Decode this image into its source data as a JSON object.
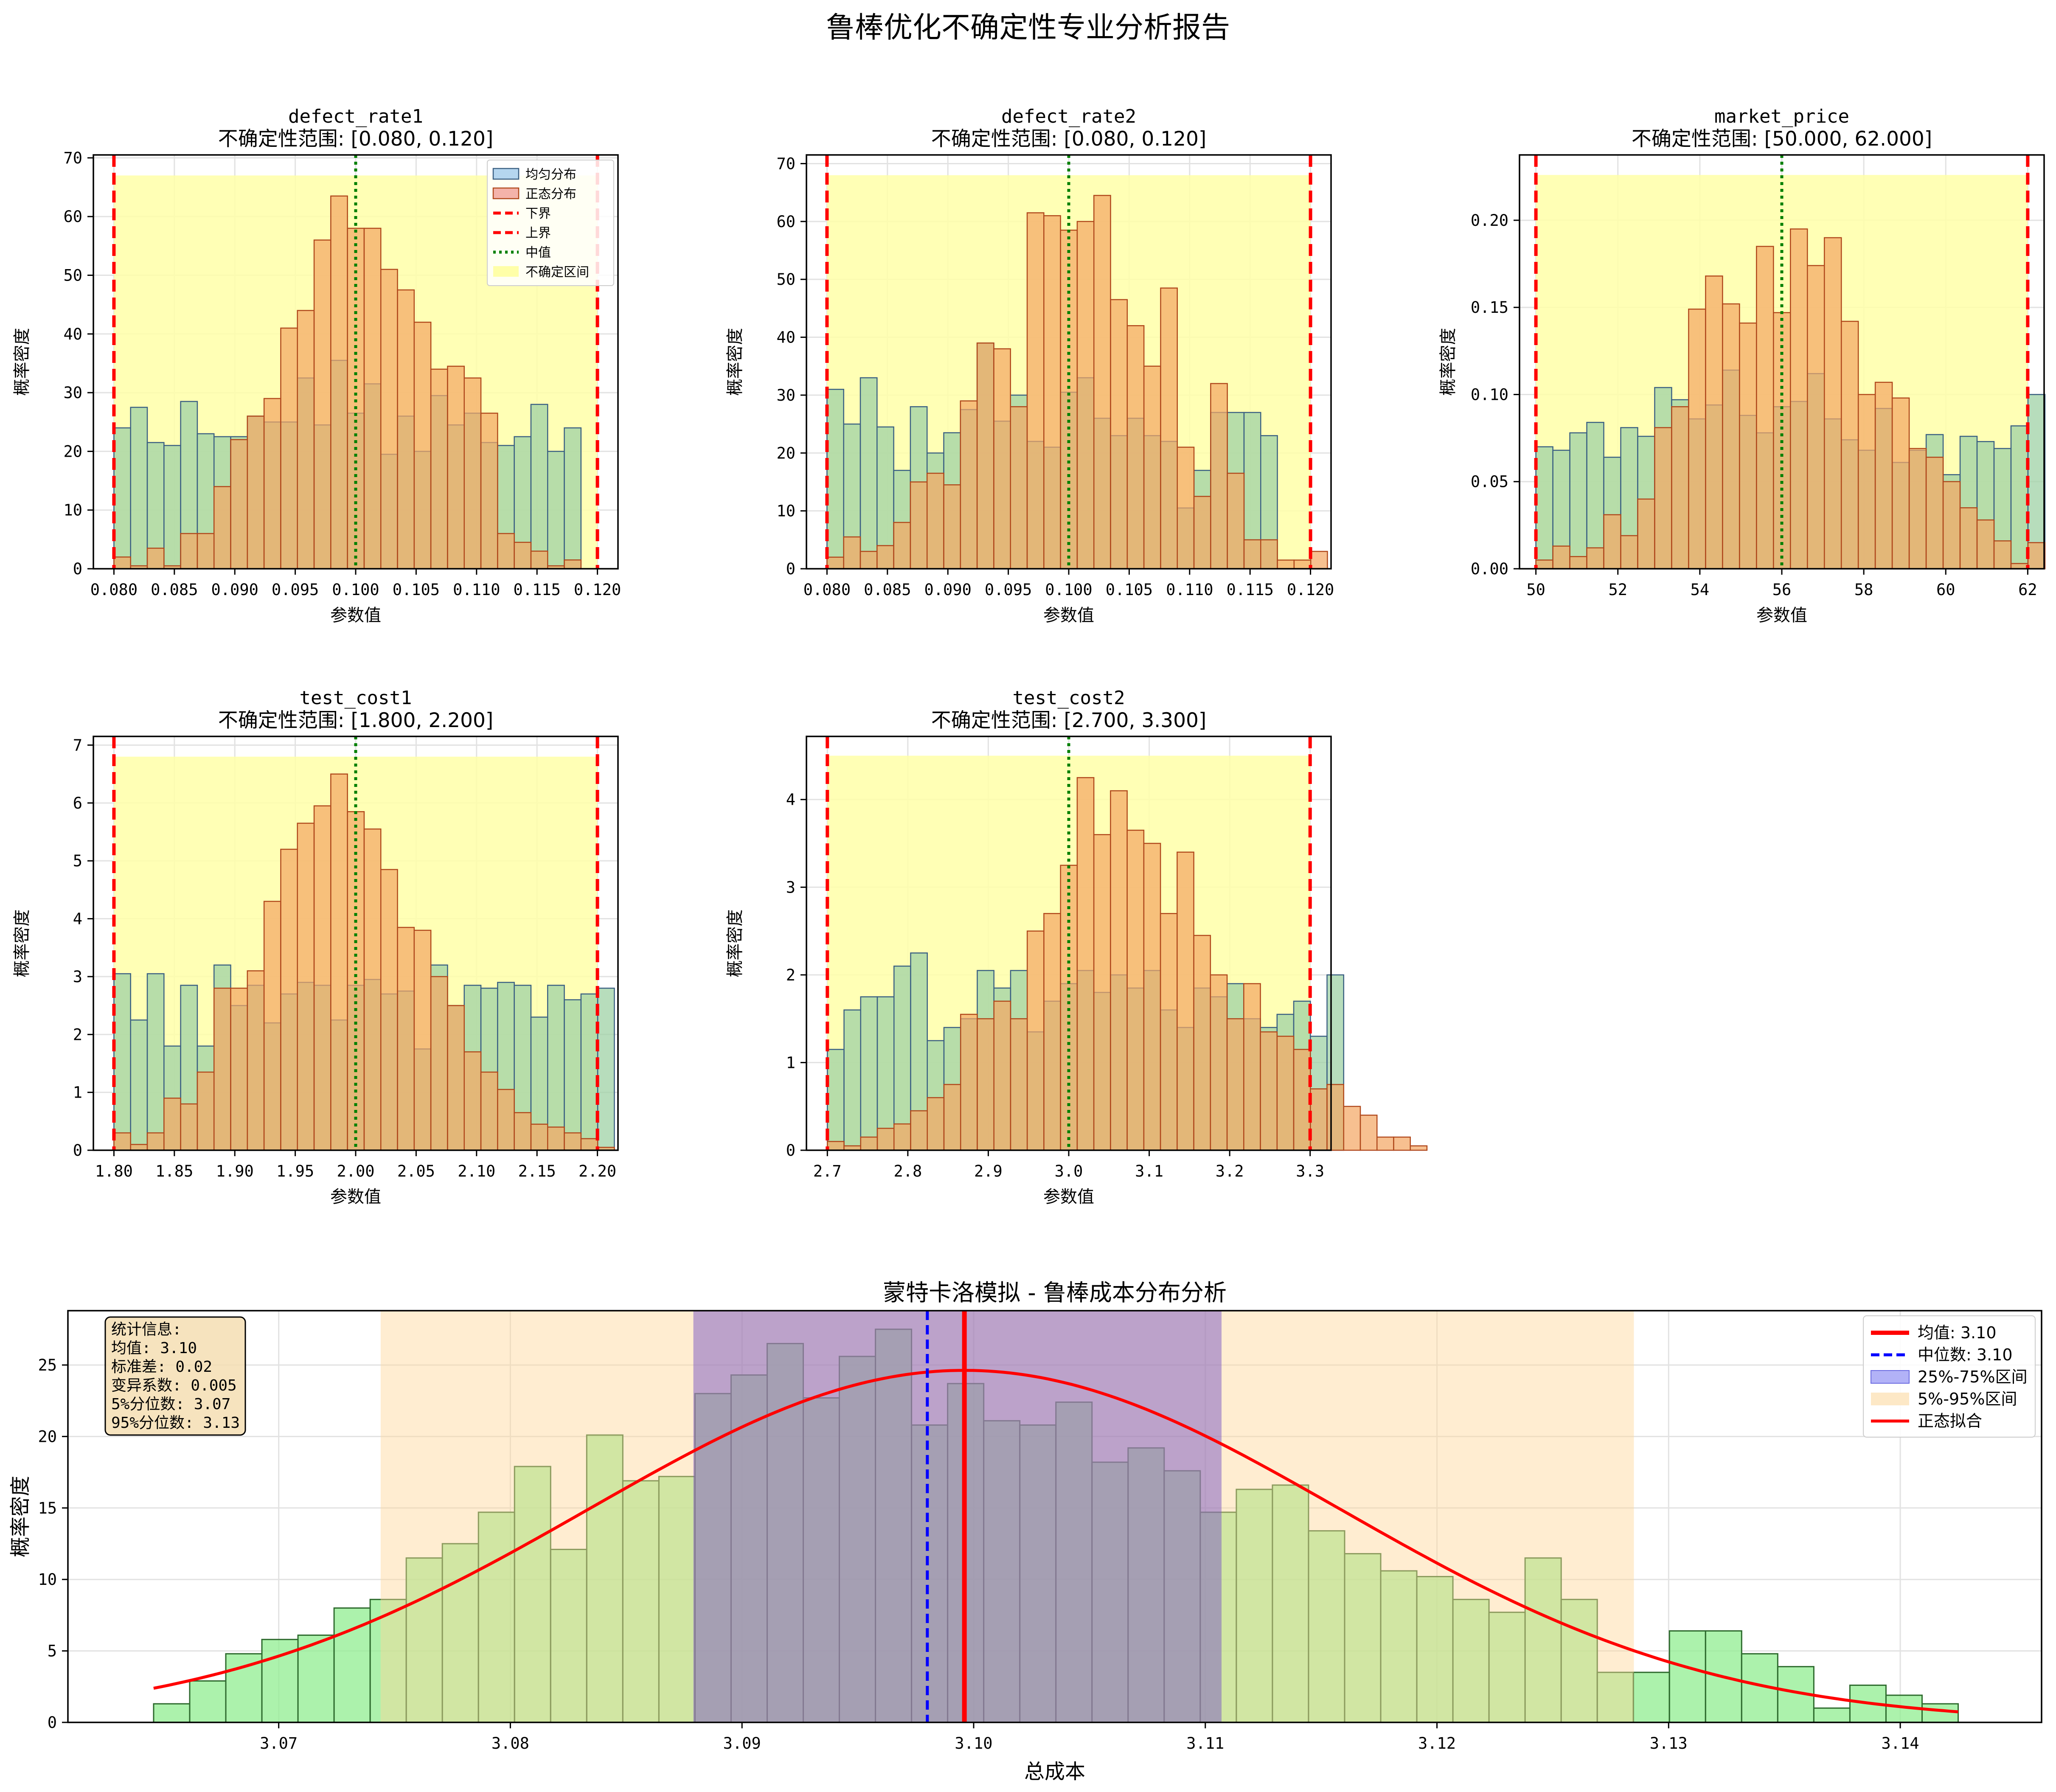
{
  "figure_title": "鲁棒优化不确定性专业分析报告",
  "colors": {
    "uniform_fill": "#9fd2a6",
    "uniform_edge": "#3a5f82",
    "normal_fill": "#f4a765",
    "normal_edge": "#b0481c",
    "bound_line": "#ff0000",
    "center_line": "#008000",
    "band": "#ffffa8",
    "grid": "#e2e2e2",
    "mc_bar": "#90ee90",
    "mc_bar_edge": "#2e6b2e",
    "iqr_band": "#7a58c4",
    "p90_band": "#ffd898",
    "mean_line": "#ff0000",
    "median_line": "#0000ff",
    "fit_line": "#ff0000",
    "stats_box": "#f5deb3"
  },
  "legend_small": [
    {
      "label": "均匀分布",
      "type": "uniform"
    },
    {
      "label": "正态分布",
      "type": "normal"
    },
    {
      "label": "下界",
      "type": "bound"
    },
    {
      "label": "上界",
      "type": "bound"
    },
    {
      "label": "中值",
      "type": "center"
    },
    {
      "label": "不确定区间",
      "type": "band"
    }
  ],
  "chart_data": [
    {
      "type": "bar",
      "title": "defect_rate1",
      "subtitle": "不确定性范围: [0.080, 0.120]",
      "xlabel": "参数值",
      "ylabel": "概率密度",
      "xlim": [
        0.0783,
        0.1217
      ],
      "ylim": [
        0,
        70.5
      ],
      "bounds": [
        0.08,
        0.12
      ],
      "center": 0.1,
      "band_top": 67,
      "xticks": [
        0.08,
        0.085,
        0.09,
        0.095,
        0.1,
        0.105,
        0.11,
        0.115,
        0.12
      ],
      "xtick_labels": [
        "0.080",
        "0.085",
        "0.090",
        "0.095",
        "0.100",
        "0.105",
        "0.110",
        "0.115",
        "0.120"
      ],
      "yticks": [
        0,
        10,
        20,
        30,
        40,
        50,
        60,
        70
      ],
      "ytick_labels": [
        "0",
        "10",
        "20",
        "30",
        "40",
        "50",
        "60",
        "70"
      ],
      "bin_start": 0.08,
      "bin_width": 0.00138,
      "series": [
        {
          "name": "均匀分布",
          "values": [
            24,
            27.5,
            21.5,
            21,
            28.5,
            23,
            22.5,
            22.5,
            26,
            25,
            25,
            32.5,
            24.5,
            35.5,
            26.5,
            31.5,
            19.5,
            26,
            20,
            29.5,
            24.5,
            26.5,
            21.5,
            21,
            22.5,
            28,
            20,
            24
          ]
        },
        {
          "name": "正态分布",
          "values": [
            2,
            0.5,
            3.5,
            0.5,
            6,
            6,
            14,
            22,
            26,
            29,
            41,
            44,
            56,
            63.5,
            58,
            58,
            51,
            47.5,
            42,
            34,
            34.5,
            32.5,
            26.5,
            6,
            4.5,
            3,
            0.5,
            1.5
          ]
        }
      ],
      "legend": "upper right"
    },
    {
      "type": "bar",
      "title": "defect_rate2",
      "subtitle": "不确定性范围: [0.080, 0.120]",
      "xlabel": "参数值",
      "ylabel": "概率密度",
      "xlim": [
        0.0783,
        0.1217
      ],
      "ylim": [
        0,
        71.5
      ],
      "bounds": [
        0.08,
        0.12
      ],
      "center": 0.1,
      "band_top": 68,
      "xticks": [
        0.08,
        0.085,
        0.09,
        0.095,
        0.1,
        0.105,
        0.11,
        0.115,
        0.12
      ],
      "xtick_labels": [
        "0.080",
        "0.085",
        "0.090",
        "0.095",
        "0.100",
        "0.105",
        "0.110",
        "0.115",
        "0.120"
      ],
      "yticks": [
        0,
        10,
        20,
        30,
        40,
        50,
        60,
        70
      ],
      "ytick_labels": [
        "0",
        "10",
        "20",
        "30",
        "40",
        "50",
        "60",
        "70"
      ],
      "bin_start": 0.08,
      "bin_width": 0.00138,
      "series": [
        {
          "name": "均匀分布",
          "values": [
            31,
            25,
            33,
            24.5,
            17,
            28,
            20,
            23.5,
            27.5,
            39,
            25.5,
            30,
            22,
            21,
            30.5,
            33,
            26,
            23,
            26,
            23,
            22,
            10.5,
            17,
            27,
            27,
            27,
            23
          ]
        },
        {
          "name": "正态分布",
          "values": [
            2,
            5.5,
            3,
            4,
            8,
            15,
            16.5,
            14.5,
            29,
            39,
            38,
            28,
            61.5,
            61,
            58.5,
            60,
            64.5,
            46.5,
            42,
            35,
            48.5,
            21,
            12.5,
            32,
            16.5,
            5,
            5,
            1.5,
            1.5,
            3
          ]
        }
      ]
    },
    {
      "type": "bar",
      "title": "market_price",
      "subtitle": "不确定性范围: [50.000, 62.000]",
      "xlabel": "参数值",
      "ylabel": "概率密度",
      "xlim": [
        49.6,
        62.4
      ],
      "ylim": [
        0,
        0.2375
      ],
      "bounds": [
        50,
        62
      ],
      "center": 56,
      "band_top": 0.226,
      "xticks": [
        50,
        52,
        54,
        56,
        58,
        60,
        62
      ],
      "xtick_labels": [
        "50",
        "52",
        "54",
        "56",
        "58",
        "60",
        "62"
      ],
      "yticks": [
        0,
        0.05,
        0.1,
        0.15,
        0.2
      ],
      "ytick_labels": [
        "0.00",
        "0.05",
        "0.10",
        "0.15",
        "0.20"
      ],
      "bin_start": 50,
      "bin_width": 0.414,
      "series": [
        {
          "name": "均匀分布",
          "values": [
            0.07,
            0.068,
            0.078,
            0.084,
            0.064,
            0.081,
            0.076,
            0.104,
            0.097,
            0.086,
            0.094,
            0.114,
            0.088,
            0.078,
            0.093,
            0.096,
            0.112,
            0.086,
            0.074,
            0.068,
            0.092,
            0.061,
            0.068,
            0.077,
            0.054,
            0.076,
            0.073,
            0.069,
            0.082,
            0.1
          ]
        },
        {
          "name": "正态分布",
          "values": [
            0.005,
            0.013,
            0.007,
            0.012,
            0.031,
            0.019,
            0.04,
            0.081,
            0.093,
            0.149,
            0.168,
            0.152,
            0.141,
            0.185,
            0.147,
            0.195,
            0.174,
            0.19,
            0.142,
            0.1,
            0.107,
            0.098,
            0.069,
            0.064,
            0.05,
            0.035,
            0.028,
            0.016,
            0.003,
            0.015
          ]
        }
      ]
    },
    {
      "type": "bar",
      "title": "test_cost1",
      "subtitle": "不确定性范围: [1.800, 2.200]",
      "xlabel": "参数值",
      "ylabel": "概率密度",
      "xlim": [
        1.783,
        2.217
      ],
      "ylim": [
        0,
        7.15
      ],
      "bounds": [
        1.8,
        2.2
      ],
      "center": 2.0,
      "band_top": 6.8,
      "xticks": [
        1.8,
        1.85,
        1.9,
        1.95,
        2.0,
        2.05,
        2.1,
        2.15,
        2.2
      ],
      "xtick_labels": [
        "1.80",
        "1.85",
        "1.90",
        "1.95",
        "2.00",
        "2.05",
        "2.10",
        "2.15",
        "2.20"
      ],
      "yticks": [
        0,
        1,
        2,
        3,
        4,
        5,
        6,
        7
      ],
      "ytick_labels": [
        "0",
        "1",
        "2",
        "3",
        "4",
        "5",
        "6",
        "7"
      ],
      "bin_start": 1.8,
      "bin_width": 0.0138,
      "series": [
        {
          "name": "均匀分布",
          "values": [
            3.05,
            2.25,
            3.05,
            1.8,
            2.85,
            1.8,
            3.2,
            2.5,
            2.85,
            2.2,
            2.7,
            2.9,
            2.85,
            2.25,
            2.85,
            2.95,
            2.7,
            2.75,
            1.75,
            3.2,
            2.5,
            2.85,
            2.8,
            2.9,
            2.85,
            2.3,
            2.85,
            2.6,
            2.7,
            2.8
          ]
        },
        {
          "name": "正态分布",
          "values": [
            0.3,
            0.1,
            0.3,
            0.9,
            0.8,
            1.35,
            2.8,
            2.8,
            3.1,
            4.3,
            5.2,
            5.65,
            5.95,
            6.5,
            5.85,
            5.55,
            4.85,
            3.85,
            3.8,
            3.0,
            2.5,
            1.7,
            1.35,
            1.05,
            0.65,
            0.45,
            0.4,
            0.3,
            0.2,
            0.05
          ]
        }
      ]
    },
    {
      "type": "bar",
      "title": "test_cost2",
      "subtitle": "不确定性范围: [2.700, 3.300]",
      "xlabel": "参数值",
      "ylabel": "概率密度",
      "xlim": [
        2.674,
        3.326
      ],
      "ylim": [
        0,
        4.72
      ],
      "bounds": [
        2.7,
        3.3
      ],
      "center": 3.0,
      "band_top": 4.5,
      "xticks": [
        2.7,
        2.8,
        2.9,
        3.0,
        3.1,
        3.2,
        3.3
      ],
      "xtick_labels": [
        "2.7",
        "2.8",
        "2.9",
        "3.0",
        "3.1",
        "3.2",
        "3.3"
      ],
      "yticks": [
        0,
        1,
        2,
        3,
        4
      ],
      "ytick_labels": [
        "0",
        "1",
        "2",
        "3",
        "4"
      ],
      "bin_start": 2.7,
      "bin_width": 0.0207,
      "series": [
        {
          "name": "均匀分布",
          "values": [
            1.15,
            1.6,
            1.75,
            1.75,
            2.1,
            2.25,
            1.25,
            1.4,
            1.5,
            2.05,
            1.85,
            2.05,
            1.35,
            1.7,
            1.9,
            2.05,
            1.8,
            2.0,
            1.85,
            2.05,
            1.6,
            1.4,
            1.85,
            1.75,
            1.9,
            1.5,
            1.4,
            1.55,
            1.7,
            1.3,
            2.0
          ]
        },
        {
          "name": "正态分布",
          "values": [
            0.1,
            0.05,
            0.15,
            0.25,
            0.3,
            0.45,
            0.6,
            0.75,
            1.55,
            1.5,
            1.7,
            1.5,
            2.5,
            2.7,
            3.25,
            4.25,
            3.6,
            4.1,
            3.65,
            3.5,
            2.7,
            3.4,
            2.45,
            2.0,
            1.5,
            1.9,
            1.35,
            1.3,
            1.15,
            0.7,
            0.75,
            0.5,
            0.4,
            0.15,
            0.15,
            0.05
          ]
        }
      ]
    },
    {
      "type": "bar",
      "title": "蒙特卡洛模拟 - 鲁棒成本分布分析",
      "xlabel": "总成本",
      "ylabel": "概率密度",
      "xlim": [
        3.0609,
        3.1461
      ],
      "ylim": [
        0,
        28.8
      ],
      "xticks": [
        3.07,
        3.08,
        3.09,
        3.1,
        3.11,
        3.12,
        3.13,
        3.14
      ],
      "xtick_labels": [
        "3.07",
        "3.08",
        "3.09",
        "3.10",
        "3.11",
        "3.12",
        "3.13",
        "3.14"
      ],
      "yticks": [
        0,
        5,
        10,
        15,
        20,
        25
      ],
      "ytick_labels": [
        "0",
        "5",
        "10",
        "15",
        "20",
        "25"
      ],
      "bin_start": 3.0646,
      "bin_width": 0.001558,
      "values": [
        1.3,
        2.9,
        4.8,
        5.8,
        6.1,
        8.0,
        8.6,
        11.5,
        12.5,
        14.7,
        17.9,
        12.1,
        20.1,
        16.9,
        17.2,
        23.0,
        24.3,
        26.5,
        22.7,
        25.6,
        27.5,
        20.8,
        23.7,
        21.1,
        20.8,
        22.4,
        18.2,
        19.2,
        17.6,
        14.7,
        16.3,
        16.6,
        13.4,
        11.8,
        10.6,
        10.2,
        8.6,
        7.7,
        11.5,
        8.6,
        3.5,
        3.5,
        6.4,
        6.4,
        4.8,
        3.9,
        1.0,
        2.6,
        1.9,
        1.3
      ],
      "mean": 3.0996,
      "median": 3.098,
      "p25": 3.0879,
      "p75": 3.1107,
      "p5": 3.0744,
      "p95": 3.1285,
      "fit": {
        "mu": 3.0996,
        "sigma": 0.0162
      },
      "stats_lines": [
        "统计信息:",
        "均值: 3.10",
        "标准差: 0.02",
        "变异系数: 0.005",
        "5%分位数: 3.07",
        "95%分位数: 3.13"
      ],
      "legend": [
        {
          "label": "均值: 3.10",
          "type": "mean"
        },
        {
          "label": "中位数: 3.10",
          "type": "median"
        },
        {
          "label": "25%-75%区间",
          "type": "iqr"
        },
        {
          "label": "5%-95%区间",
          "type": "p90"
        },
        {
          "label": "正态拟合",
          "type": "fit"
        }
      ]
    }
  ]
}
